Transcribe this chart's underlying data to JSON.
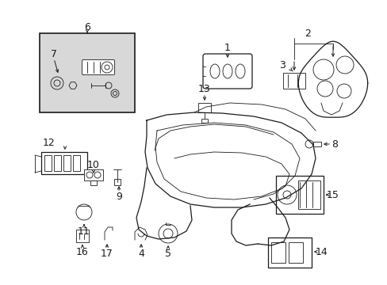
{
  "bg_color": "#ffffff",
  "line_color": "#1a1a1a",
  "fig_width": 4.89,
  "fig_height": 3.6,
  "dpi": 100,
  "box_fill": "#e0e0e0",
  "label_fontsize": 9,
  "small_fontsize": 7.5
}
